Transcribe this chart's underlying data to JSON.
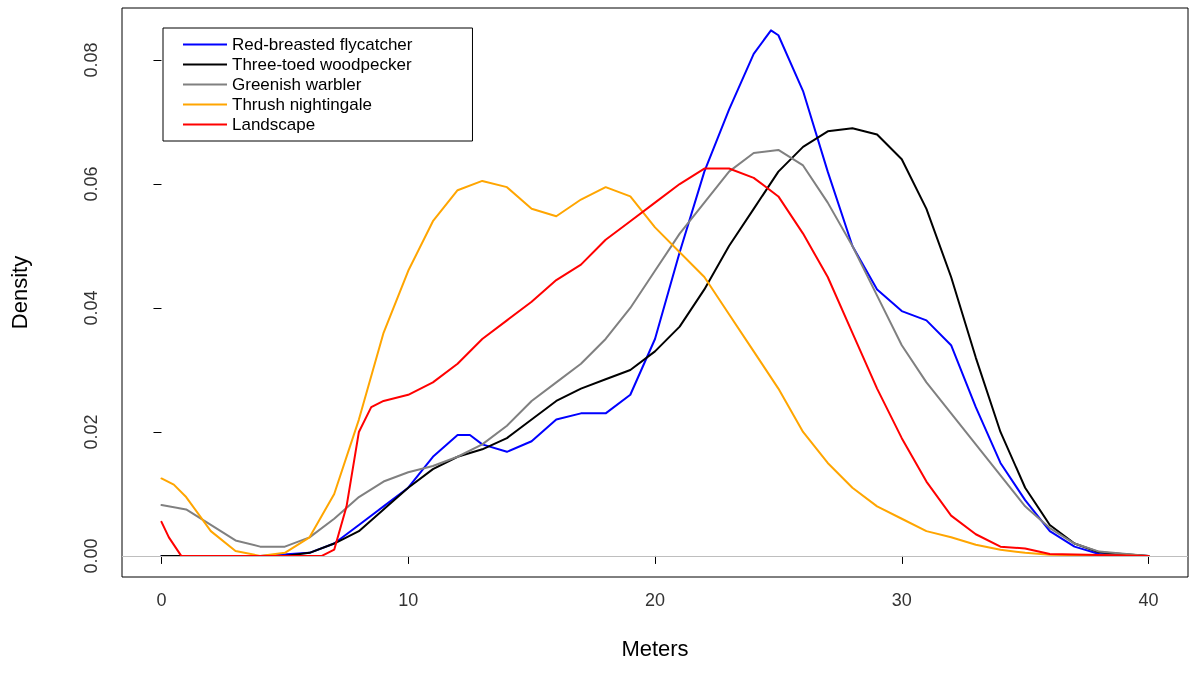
{
  "chart_data": {
    "type": "line",
    "xlabel": "Meters",
    "ylabel": "Density",
    "xlim": [
      -1.6,
      41.6
    ],
    "ylim": [
      -0.0034,
      0.0884
    ],
    "xticks": [
      0,
      10,
      20,
      30,
      40
    ],
    "yticks": [
      {
        "value": 0,
        "label": "0.00"
      },
      {
        "value": 0.02,
        "label": "0.02"
      },
      {
        "value": 0.04,
        "label": "0.04"
      },
      {
        "value": 0.06,
        "label": "0.06"
      },
      {
        "value": 0.08,
        "label": "0.08"
      }
    ],
    "grid": false,
    "legend": "top left",
    "marker": "none",
    "ref_lines": [
      {
        "axis": "y",
        "value": 0,
        "label": null,
        "color": "#bebebe"
      }
    ],
    "series": [
      {
        "name": "Red-breasted flycatcher",
        "color": "#0000ff",
        "x": [
          0,
          4,
          6,
          7,
          8,
          9,
          10,
          11,
          12,
          12.5,
          13,
          14,
          15,
          16,
          17,
          18,
          19,
          20,
          21,
          22,
          23,
          24,
          24.7,
          25,
          26,
          27,
          28,
          29,
          30,
          31,
          32,
          33,
          34,
          35,
          36,
          37,
          38,
          40
        ],
        "values": [
          0,
          0,
          0.0005,
          0.002,
          0.005,
          0.008,
          0.011,
          0.016,
          0.0195,
          0.0195,
          0.018,
          0.0168,
          0.0185,
          0.022,
          0.023,
          0.023,
          0.026,
          0.035,
          0.049,
          0.062,
          0.072,
          0.081,
          0.0848,
          0.084,
          0.075,
          0.062,
          0.05,
          0.043,
          0.0395,
          0.038,
          0.034,
          0.024,
          0.015,
          0.009,
          0.004,
          0.0015,
          0.0003,
          0
        ]
      },
      {
        "name": "Three-toed woodpecker",
        "color": "#000000",
        "x": [
          0,
          5,
          6,
          7,
          8,
          9,
          10,
          11,
          12,
          13,
          14,
          15,
          16,
          17,
          18,
          19,
          20,
          21,
          22,
          23,
          24,
          25,
          26,
          27,
          28,
          29,
          30,
          31,
          32,
          33,
          34,
          35,
          36,
          37,
          38,
          40
        ],
        "values": [
          0,
          0,
          0.0005,
          0.002,
          0.004,
          0.0075,
          0.011,
          0.014,
          0.016,
          0.0172,
          0.019,
          0.022,
          0.025,
          0.027,
          0.0285,
          0.03,
          0.033,
          0.037,
          0.043,
          0.05,
          0.056,
          0.062,
          0.066,
          0.0685,
          0.069,
          0.068,
          0.064,
          0.056,
          0.045,
          0.032,
          0.02,
          0.011,
          0.005,
          0.002,
          0.0006,
          0
        ]
      },
      {
        "name": "Greenish warbler",
        "color": "#808080",
        "x": [
          0,
          1,
          2,
          3,
          4,
          5,
          6,
          7,
          8,
          9,
          10,
          11,
          12,
          13,
          14,
          15,
          16,
          17,
          18,
          19,
          20,
          21,
          22,
          23,
          24,
          25,
          26,
          27,
          28,
          29,
          30,
          31,
          32,
          33,
          34,
          35,
          36,
          37,
          38,
          40
        ],
        "values": [
          0.0082,
          0.0075,
          0.005,
          0.0025,
          0.0015,
          0.0015,
          0.003,
          0.006,
          0.0095,
          0.012,
          0.0135,
          0.0145,
          0.016,
          0.018,
          0.021,
          0.025,
          0.028,
          0.031,
          0.035,
          0.04,
          0.046,
          0.052,
          0.057,
          0.062,
          0.065,
          0.0655,
          0.063,
          0.057,
          0.05,
          0.042,
          0.034,
          0.028,
          0.023,
          0.018,
          0.013,
          0.008,
          0.0045,
          0.002,
          0.0007,
          0
        ]
      },
      {
        "name": "Thrush nightingale",
        "color": "#ffa500",
        "x": [
          0,
          0.5,
          1,
          2,
          3,
          4,
          5,
          6,
          7,
          8,
          9,
          10,
          11,
          12,
          13,
          14,
          15,
          16,
          17,
          18,
          19,
          20,
          21,
          22,
          23,
          24,
          25,
          26,
          27,
          28,
          29,
          30,
          31,
          32,
          33,
          34,
          35,
          36,
          40
        ],
        "values": [
          0.0125,
          0.0115,
          0.0095,
          0.004,
          0.0008,
          0,
          0.0005,
          0.003,
          0.01,
          0.022,
          0.036,
          0.046,
          0.054,
          0.059,
          0.0605,
          0.0595,
          0.056,
          0.0548,
          0.0575,
          0.0595,
          0.058,
          0.053,
          0.049,
          0.045,
          0.039,
          0.033,
          0.027,
          0.02,
          0.015,
          0.011,
          0.008,
          0.006,
          0.004,
          0.003,
          0.0018,
          0.001,
          0.0005,
          0.0002,
          0
        ]
      },
      {
        "name": "Landscape",
        "color": "#ff0000",
        "x": [
          0,
          0.3,
          0.8,
          6.5,
          7,
          7.5,
          8,
          8.5,
          9,
          10,
          11,
          12,
          13,
          14,
          15,
          16,
          17,
          18,
          19,
          20,
          21,
          22,
          23,
          24,
          25,
          26,
          27,
          28,
          29,
          30,
          31,
          32,
          33,
          34,
          35,
          36,
          40
        ],
        "values": [
          0.0055,
          0.003,
          0,
          0,
          0.001,
          0.008,
          0.02,
          0.024,
          0.025,
          0.026,
          0.028,
          0.031,
          0.035,
          0.038,
          0.041,
          0.0445,
          0.047,
          0.051,
          0.054,
          0.057,
          0.06,
          0.0625,
          0.0625,
          0.061,
          0.058,
          0.052,
          0.045,
          0.036,
          0.027,
          0.019,
          0.012,
          0.0065,
          0.0035,
          0.0015,
          0.0012,
          0.0003,
          0
        ]
      }
    ]
  }
}
